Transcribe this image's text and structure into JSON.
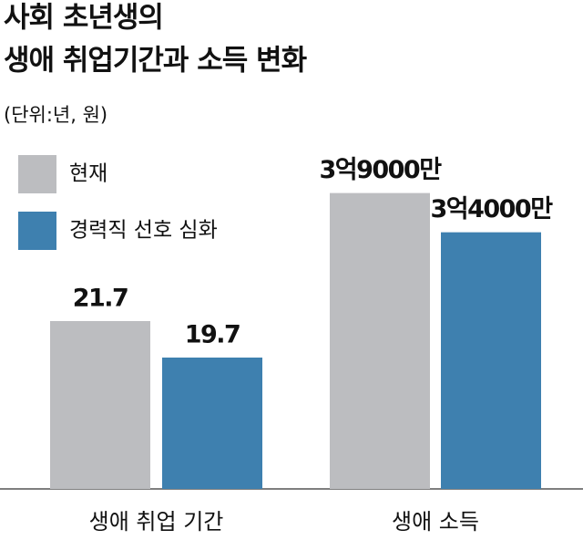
{
  "title": [
    "사회 초년생의",
    "생애 취업기간과 소득 변화"
  ],
  "subtitle": "(단위:년, 원)",
  "chart_data": [
    {
      "type": "bar",
      "categories": [
        "생애 취업 기간"
      ],
      "series": [
        {
          "name": "현재",
          "color": "#bcbdc0",
          "values": [
            21.7
          ]
        },
        {
          "name": "경력직 선호 심화",
          "color": "#3e80af",
          "values": [
            19.7
          ]
        }
      ],
      "ylim": [
        12.5,
        31.3
      ]
    },
    {
      "type": "bar",
      "categories": [
        "생애 소득"
      ],
      "series": [
        {
          "color": "#bcbdc0",
          "values": [
            390000000
          ],
          "value_labels": [
            "3억9000만"
          ]
        },
        {
          "color": "#3e80af",
          "values": [
            340000000
          ],
          "value_labels": [
            "3억4000만"
          ]
        }
      ],
      "ylim": [
        13000000,
        450000000
      ]
    }
  ]
}
